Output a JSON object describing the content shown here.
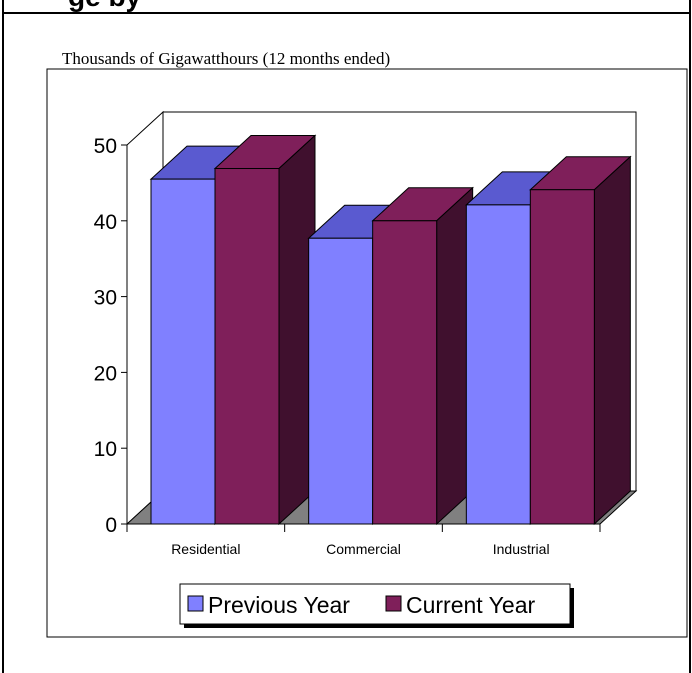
{
  "page": {
    "title_fragment": "ge    by",
    "colors": {
      "background": "#ffffff",
      "border": "#000000"
    }
  },
  "chart_data": {
    "type": "bar",
    "title": "",
    "unit_label": "Thousands of Gigawatthours (12 months ended)",
    "xlabel": "",
    "ylabel": "",
    "categories": [
      "Residential",
      "Commercial",
      "Industrial"
    ],
    "series": [
      {
        "name": "Previous Year",
        "values": [
          45.5,
          37.7,
          42.1
        ],
        "color": "#8080ff"
      },
      {
        "name": "Current Year",
        "values": [
          46.9,
          40.0,
          44.1
        ],
        "color": "#7f1f5a"
      }
    ],
    "ylim": [
      0,
      50
    ],
    "yticks": [
      "0",
      "10",
      "20",
      "30",
      "40",
      "50"
    ],
    "grid": false,
    "three_d": true,
    "legend_position": "bottom",
    "colors": {
      "floor": "#808080",
      "wall": "#ffffff",
      "prev_top": "#5a5ad0",
      "prev_side": "#404080",
      "curr_side": "#40102e"
    }
  }
}
